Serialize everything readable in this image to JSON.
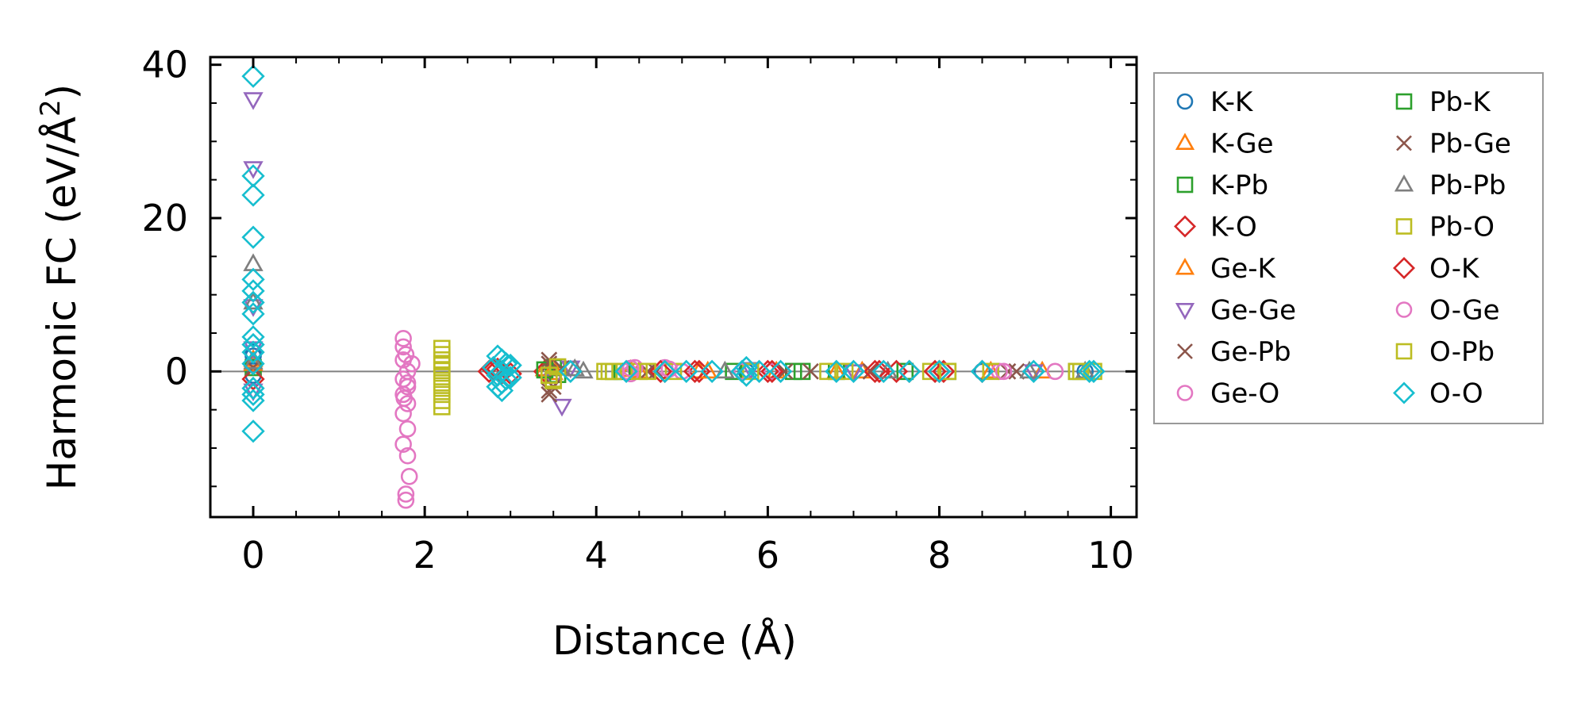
{
  "chart_data": {
    "type": "scatter",
    "title": "",
    "xlabel": "Distance (Å)",
    "ylabel": "Harmonic FC (eV/Å²)",
    "ylabel_base": "Harmonic FC (eV/Å",
    "ylabel_sup": "2",
    "ylabel_end": ")",
    "xlim": [
      -0.5,
      10.3
    ],
    "ylim": [
      -19,
      41
    ],
    "x_ticks": [
      0,
      2,
      4,
      6,
      8,
      10
    ],
    "x_tick_labels": [
      "0",
      "2",
      "4",
      "6",
      "8",
      "10"
    ],
    "y_ticks": [
      0,
      20,
      40
    ],
    "y_tick_labels": [
      "0",
      "20",
      "40"
    ],
    "grid": false,
    "zero_line": true,
    "legend_position": "outside-right",
    "series": [
      {
        "name": "K-K",
        "marker": "circle",
        "color": "#1f77b4",
        "points": [
          [
            0,
            2.5
          ],
          [
            0,
            2.0
          ],
          [
            0,
            -0.5
          ],
          [
            5.75,
            0
          ],
          [
            8.5,
            0
          ],
          [
            9.7,
            0
          ]
        ]
      },
      {
        "name": "K-Ge",
        "marker": "triangle-up",
        "color": "#ff7f0e",
        "points": [
          [
            0,
            1.5
          ],
          [
            3.4,
            0.3
          ],
          [
            3.5,
            -0.2
          ],
          [
            4.4,
            0.2
          ],
          [
            5.2,
            0
          ],
          [
            6.1,
            0
          ],
          [
            7.1,
            0
          ],
          [
            9.2,
            0
          ]
        ]
      },
      {
        "name": "K-Pb",
        "marker": "square",
        "color": "#2ca02c",
        "points": [
          [
            0,
            0.5
          ],
          [
            3.5,
            0.5
          ],
          [
            3.55,
            -0.4
          ],
          [
            4.2,
            0
          ],
          [
            5.6,
            0
          ],
          [
            6.3,
            0
          ],
          [
            7.6,
            0
          ],
          [
            9.6,
            0
          ]
        ]
      },
      {
        "name": "K-O",
        "marker": "diamond",
        "color": "#d62728",
        "points": [
          [
            0,
            -1.0
          ],
          [
            2.8,
            0.2
          ],
          [
            2.9,
            -0.2
          ],
          [
            3.4,
            0
          ],
          [
            4.8,
            0
          ],
          [
            5.2,
            0
          ],
          [
            6.0,
            0
          ],
          [
            7.3,
            0
          ],
          [
            7.5,
            0
          ],
          [
            8.0,
            0
          ],
          [
            8.5,
            0
          ]
        ]
      },
      {
        "name": "Ge-K",
        "marker": "triangle-up",
        "color": "#ff7f0e",
        "points": [
          [
            0,
            1.0
          ],
          [
            3.5,
            0.4
          ],
          [
            4.5,
            0
          ],
          [
            5.3,
            0
          ],
          [
            6.8,
            0
          ],
          [
            8.6,
            0
          ]
        ]
      },
      {
        "name": "Ge-Ge",
        "marker": "triangle-down",
        "color": "#9467bd",
        "points": [
          [
            0,
            35.5
          ],
          [
            0,
            26.5
          ],
          [
            0,
            8.5
          ],
          [
            0,
            3.0
          ],
          [
            0,
            -2.5
          ],
          [
            3.6,
            -4.5
          ],
          [
            3.5,
            -1.2
          ],
          [
            3.7,
            0.5
          ],
          [
            5.8,
            0.3
          ],
          [
            7.0,
            0
          ],
          [
            9.1,
            0
          ]
        ]
      },
      {
        "name": "Ge-Pb",
        "marker": "x",
        "color": "#8c564b",
        "points": [
          [
            0,
            0.5
          ],
          [
            3.45,
            1.5
          ],
          [
            3.45,
            -3.0
          ],
          [
            3.5,
            -2.0
          ],
          [
            3.6,
            0.4
          ],
          [
            4.6,
            0
          ],
          [
            6.2,
            0
          ],
          [
            7.2,
            0
          ],
          [
            8.8,
            0
          ]
        ]
      },
      {
        "name": "Ge-O",
        "marker": "circle",
        "color": "#e377c2",
        "points": [
          [
            1.75,
            4.3
          ],
          [
            1.75,
            3.2
          ],
          [
            1.75,
            1.5
          ],
          [
            1.8,
            0
          ],
          [
            1.75,
            -1.0
          ],
          [
            1.8,
            -1.5
          ],
          [
            1.75,
            -3.0
          ],
          [
            1.8,
            -4.2
          ],
          [
            1.75,
            -5.5
          ],
          [
            1.8,
            -7.5
          ],
          [
            1.75,
            -9.5
          ],
          [
            1.8,
            -11.0
          ],
          [
            1.82,
            -13.7
          ],
          [
            1.78,
            -16.0
          ],
          [
            1.78,
            -16.8
          ],
          [
            1.85,
            1.0
          ],
          [
            4.45,
            0.5
          ],
          [
            4.4,
            -0.3
          ],
          [
            4.8,
            0.5
          ],
          [
            5.0,
            0
          ],
          [
            6.05,
            0
          ],
          [
            8.7,
            0
          ],
          [
            9.35,
            0
          ]
        ]
      },
      {
        "name": "Pb-K",
        "marker": "square",
        "color": "#2ca02c",
        "points": [
          [
            3.4,
            0.2
          ],
          [
            4.3,
            0
          ],
          [
            6.4,
            0
          ],
          [
            6.8,
            0
          ],
          [
            8.1,
            0
          ]
        ]
      },
      {
        "name": "Pb-Ge",
        "marker": "x",
        "color": "#8c564b",
        "points": [
          [
            3.45,
            1.0
          ],
          [
            3.45,
            -2.5
          ],
          [
            4.7,
            0
          ],
          [
            6.5,
            0
          ],
          [
            8.9,
            0
          ]
        ]
      },
      {
        "name": "Pb-Pb",
        "marker": "triangle-up",
        "color": "#7f7f7f",
        "points": [
          [
            0,
            14.0
          ],
          [
            0,
            9.0
          ],
          [
            0,
            1.2
          ],
          [
            3.75,
            0.3
          ],
          [
            3.85,
            0
          ],
          [
            5.5,
            0
          ],
          [
            7.4,
            0
          ],
          [
            9.05,
            0
          ],
          [
            9.7,
            0
          ]
        ]
      },
      {
        "name": "Pb-O",
        "marker": "square",
        "color": "#bcbd22",
        "points": [
          [
            3.5,
            -1.2
          ],
          [
            3.45,
            -0.5
          ],
          [
            3.55,
            0.6
          ],
          [
            4.1,
            0
          ],
          [
            4.2,
            0
          ],
          [
            4.5,
            0
          ],
          [
            4.9,
            0
          ],
          [
            5.8,
            0
          ],
          [
            6.7,
            0
          ],
          [
            7.9,
            0
          ],
          [
            8.6,
            0
          ],
          [
            9.6,
            0
          ]
        ]
      },
      {
        "name": "O-K",
        "marker": "diamond",
        "color": "#d62728",
        "points": [
          [
            2.75,
            0
          ],
          [
            2.85,
            0.3
          ],
          [
            3.0,
            -0.3
          ],
          [
            4.75,
            0
          ],
          [
            5.15,
            0
          ],
          [
            6.05,
            0
          ],
          [
            7.25,
            0
          ],
          [
            7.65,
            0
          ],
          [
            7.95,
            0
          ],
          [
            8.05,
            0
          ]
        ]
      },
      {
        "name": "O-Ge",
        "marker": "circle",
        "color": "#e377c2",
        "points": [
          [
            1.78,
            2.2
          ],
          [
            1.8,
            -2.0
          ],
          [
            1.76,
            -3.5
          ],
          [
            4.35,
            0
          ],
          [
            4.4,
            0.4
          ],
          [
            4.85,
            0.3
          ],
          [
            5.7,
            0
          ],
          [
            8.75,
            0
          ]
        ]
      },
      {
        "name": "O-Pb",
        "marker": "square",
        "color": "#bcbd22",
        "points": [
          [
            2.2,
            3.0
          ],
          [
            2.2,
            2.2
          ],
          [
            2.2,
            1.5
          ],
          [
            2.2,
            0.8
          ],
          [
            2.2,
            0.1
          ],
          [
            2.2,
            -0.7
          ],
          [
            2.2,
            -1.5
          ],
          [
            2.2,
            -2.2
          ],
          [
            2.2,
            -3.0
          ],
          [
            2.2,
            -3.8
          ],
          [
            2.2,
            -4.6
          ],
          [
            3.5,
            -1.0
          ],
          [
            4.15,
            0
          ],
          [
            4.6,
            0
          ],
          [
            6.9,
            0
          ],
          [
            8.1,
            0
          ],
          [
            9.65,
            0
          ],
          [
            9.8,
            0
          ]
        ]
      },
      {
        "name": "O-O",
        "marker": "diamond",
        "color": "#17becf",
        "points": [
          [
            0,
            38.5
          ],
          [
            0,
            25.5
          ],
          [
            0,
            23.0
          ],
          [
            0,
            17.5
          ],
          [
            0,
            12.0
          ],
          [
            0,
            10.5
          ],
          [
            0,
            9.0
          ],
          [
            0,
            7.5
          ],
          [
            0,
            4.5
          ],
          [
            0,
            3.5
          ],
          [
            0,
            2.5
          ],
          [
            0,
            1.0
          ],
          [
            0,
            -2.2
          ],
          [
            0,
            -3.0
          ],
          [
            0,
            -3.8
          ],
          [
            0,
            -7.8
          ],
          [
            2.85,
            2.0
          ],
          [
            2.9,
            1.5
          ],
          [
            2.95,
            1.0
          ],
          [
            2.8,
            0.5
          ],
          [
            2.9,
            0
          ],
          [
            2.85,
            -0.5
          ],
          [
            2.95,
            -1.0
          ],
          [
            2.9,
            -1.5
          ],
          [
            2.85,
            -2.0
          ],
          [
            2.9,
            -2.5
          ],
          [
            3.0,
            0.8
          ],
          [
            3.0,
            -0.8
          ],
          [
            3.7,
            0
          ],
          [
            4.35,
            0
          ],
          [
            4.8,
            0
          ],
          [
            5.05,
            0
          ],
          [
            5.35,
            0
          ],
          [
            5.7,
            0
          ],
          [
            5.75,
            0.5
          ],
          [
            5.75,
            -0.5
          ],
          [
            5.9,
            0
          ],
          [
            6.15,
            0
          ],
          [
            6.8,
            0
          ],
          [
            7.0,
            0
          ],
          [
            7.35,
            0
          ],
          [
            7.65,
            0
          ],
          [
            8.0,
            0
          ],
          [
            8.5,
            0
          ],
          [
            9.1,
            0
          ],
          [
            9.75,
            0
          ],
          [
            9.8,
            0
          ]
        ]
      }
    ]
  }
}
